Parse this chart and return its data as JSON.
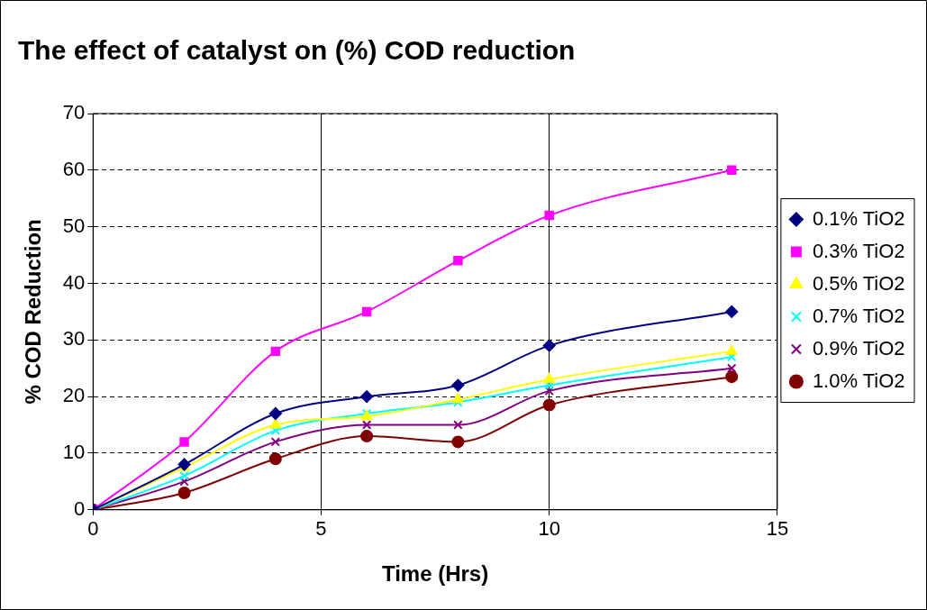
{
  "chart_data": {
    "type": "line",
    "title": "The effect of catalyst on (%) COD reduction",
    "xlabel": "Time (Hrs)",
    "ylabel": "% COD Reduction",
    "x": [
      0,
      2,
      4,
      6,
      8,
      10,
      14
    ],
    "series": [
      {
        "name": "0.1% TiO2",
        "color": "#000080",
        "marker": "diamond",
        "values": [
          0,
          8,
          17,
          20,
          22,
          29,
          35
        ]
      },
      {
        "name": "0.3% TiO2",
        "color": "#ff00ff",
        "marker": "square",
        "values": [
          0,
          12,
          28,
          35,
          44,
          52,
          60
        ]
      },
      {
        "name": "0.5% TiO2",
        "color": "#ffff00",
        "marker": "triangle",
        "values": [
          0,
          7.5,
          15,
          16.5,
          19.5,
          23,
          28
        ]
      },
      {
        "name": "0.7% TiO2",
        "color": "#00ffff",
        "marker": "cross",
        "values": [
          0,
          6,
          14,
          17,
          19,
          22,
          27
        ]
      },
      {
        "name": "0.9% TiO2",
        "color": "#800080",
        "marker": "cross",
        "values": [
          0,
          5,
          12,
          15,
          15,
          21,
          25
        ]
      },
      {
        "name": "1.0% TiO2",
        "color": "#800000",
        "marker": "circle",
        "values": [
          0,
          3,
          9,
          13,
          12,
          18.5,
          23.5
        ]
      }
    ],
    "xlim": [
      0,
      15
    ],
    "xticks": [
      0,
      5,
      10,
      15
    ],
    "ylim": [
      0,
      70
    ],
    "yticks": [
      0,
      10,
      20,
      30,
      40,
      50,
      60,
      70
    ],
    "grid": true,
    "legend": "right"
  }
}
